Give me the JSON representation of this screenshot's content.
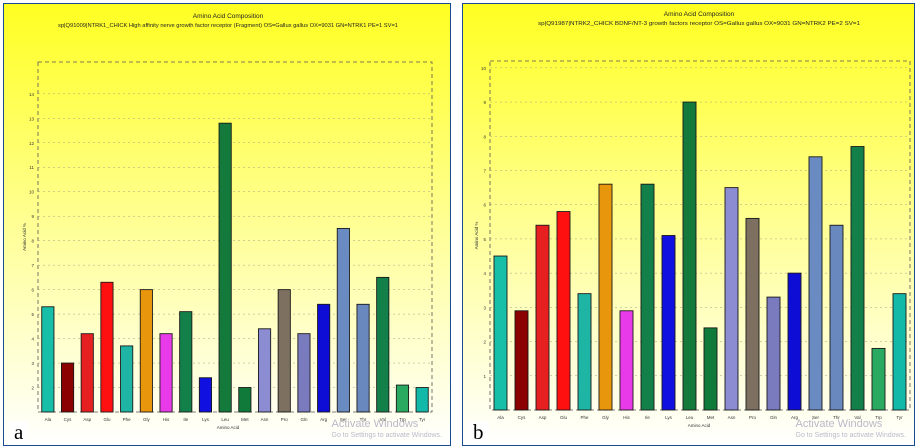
{
  "panels": [
    {
      "letter": "a",
      "watermark_line1": "Activate Windows",
      "watermark_line2": "Go to Settings to activate Windows."
    },
    {
      "letter": "b",
      "watermark_line1": "Activate Windows",
      "watermark_line2": "Go to Settings to activate Windows."
    }
  ],
  "chart_data": [
    {
      "type": "bar",
      "title": "Amino Acid Composition",
      "subtitle": "sp|Q91009|NTRK1_CHICK High affinity nerve growth factor receptor (Fragment) OS=Gallus gallus OX=9031 GN=NTRK1 PE=1 SV=1",
      "xlabel": "Amino Acid",
      "ylabel": "Amino Acid %",
      "categories": [
        "Ala",
        "Cys",
        "Asp",
        "Glu",
        "Phe",
        "Gly",
        "His",
        "Ile",
        "Lys",
        "Leu",
        "Met",
        "Asn",
        "Pro",
        "Gln",
        "Arg",
        "Ser",
        "Thr",
        "Val",
        "Trp",
        "Tyr"
      ],
      "values": [
        5.3,
        3.0,
        4.2,
        6.3,
        3.7,
        6.0,
        4.2,
        5.1,
        2.4,
        12.8,
        2.0,
        4.4,
        6.0,
        4.2,
        5.4,
        8.5,
        5.4,
        6.5,
        2.1,
        2.0
      ],
      "colors": [
        "#18bfa8",
        "#8b0000",
        "#e62020",
        "#ff1010",
        "#1fb5a5",
        "#e8960c",
        "#e83ae8",
        "#13804a",
        "#1010e0",
        "#137a3c",
        "#107a3a",
        "#8c8cd2",
        "#7e7060",
        "#7a7abf",
        "#0d0dd6",
        "#6a8ac2",
        "#6888be",
        "#13804a",
        "#2aaa60",
        "#12b8a8"
      ],
      "yticks": [
        2,
        3,
        4,
        5,
        6,
        7,
        8,
        9,
        10,
        11,
        12,
        13,
        14
      ],
      "ylim": [
        1,
        15.3
      ],
      "grid": true
    },
    {
      "type": "bar",
      "title": "Amino Acid Composition",
      "subtitle": "sp|Q91987|NTRK2_CHICK BDNF/NT-3 growth factors receptor OS=Gallus gallus OX=9031 GN=NTRK2 PE=2 SV=1",
      "xlabel": "Amino Acid",
      "ylabel": "Amino Acid %",
      "categories": [
        "Ala",
        "Cys",
        "Asp",
        "Glu",
        "Phe",
        "Gly",
        "His",
        "Ile",
        "Lys",
        "Leu",
        "Met",
        "Asn",
        "Pro",
        "Gln",
        "Arg",
        "Ser",
        "Thr",
        "Val",
        "Trp",
        "Tyr"
      ],
      "values": [
        4.5,
        2.9,
        5.4,
        5.8,
        3.4,
        6.6,
        2.9,
        6.6,
        5.1,
        9.0,
        2.4,
        6.5,
        5.6,
        3.3,
        4.0,
        7.4,
        5.4,
        7.7,
        1.8,
        3.4
      ],
      "colors": [
        "#18bfa8",
        "#8b0000",
        "#e62020",
        "#ff1010",
        "#1fb5a5",
        "#e8960c",
        "#e83ae8",
        "#13804a",
        "#1010e0",
        "#137a3c",
        "#107a3a",
        "#8c8cd2",
        "#7e7060",
        "#7a7abf",
        "#0d0dd6",
        "#6a8ac2",
        "#6888be",
        "#13804a",
        "#2aaa60",
        "#12b8a8"
      ],
      "yticks": [
        1,
        2,
        3,
        4,
        5,
        6,
        7,
        8,
        9,
        10
      ],
      "ylim": [
        0,
        10.2
      ],
      "grid": true
    }
  ]
}
